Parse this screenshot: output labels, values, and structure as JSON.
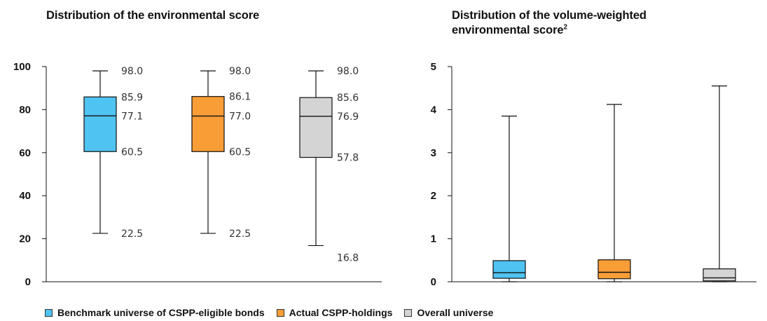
{
  "titles": {
    "left": "Distribution of the environmental score",
    "right_line1": "Distribution of the volume-weighted",
    "right_line2": "environmental score",
    "right_sup": "2"
  },
  "legend": [
    {
      "label": "Benchmark universe of CSPP-eligible bonds",
      "color": "#4fc3f1"
    },
    {
      "label": "Actual CSPP-holdings",
      "color": "#f99d36"
    },
    {
      "label": "Overall universe",
      "color": "#d4d4d4"
    }
  ],
  "chart_data": [
    {
      "type": "boxplot",
      "title": "Distribution of the environmental score",
      "ylim": [
        0,
        100
      ],
      "yticks": [
        0,
        20,
        40,
        60,
        80,
        100
      ],
      "series": [
        {
          "name": "Benchmark universe of CSPP-eligible bonds",
          "min": 22.5,
          "q1": 60.5,
          "median": 77.1,
          "q3": 85.9,
          "max": 98.0,
          "labels": [
            "98.0",
            "85.9",
            "77.1",
            "60.5",
            "22.5"
          ]
        },
        {
          "name": "Actual CSPP-holdings",
          "min": 22.5,
          "q1": 60.5,
          "median": 77.0,
          "q3": 86.1,
          "max": 98.0,
          "labels": [
            "98.0",
            "86.1",
            "77.0",
            "60.5",
            "22.5"
          ]
        },
        {
          "name": "Overall universe",
          "min": 16.8,
          "q1": 57.8,
          "median": 76.9,
          "q3": 85.6,
          "max": 98.0,
          "labels": [
            "98.0",
            "85.6",
            "76.9",
            "57.8",
            "16.8"
          ]
        }
      ]
    },
    {
      "type": "boxplot",
      "title": "Distribution of the volume-weighted environmental score",
      "ylim": [
        0,
        5
      ],
      "yticks": [
        0,
        1,
        2,
        3,
        4,
        5
      ],
      "series": [
        {
          "name": "Benchmark universe of CSPP-eligible bonds",
          "min": 0.0,
          "q1": 0.08,
          "median": 0.21,
          "q3": 0.49,
          "max": 3.85
        },
        {
          "name": "Actual CSPP-holdings",
          "min": 0.0,
          "q1": 0.07,
          "median": 0.22,
          "q3": 0.51,
          "max": 4.12
        },
        {
          "name": "Overall universe",
          "min": 0.0,
          "q1": 0.02,
          "median": 0.09,
          "q3": 0.3,
          "max": 4.55
        }
      ]
    }
  ]
}
